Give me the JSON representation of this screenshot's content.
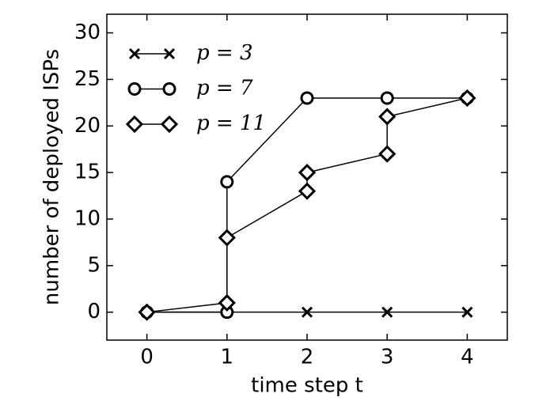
{
  "chart_data": {
    "type": "line",
    "x_label": "time step t",
    "y_label": "number of deployed ISPs",
    "xlim": [
      -0.5,
      4.5
    ],
    "ylim": [
      -3,
      32
    ],
    "xticks": [
      0,
      1,
      2,
      3,
      4
    ],
    "yticks": [
      0,
      5,
      10,
      15,
      20,
      25,
      30
    ],
    "legend": "upper left",
    "series": [
      {
        "name": "p = 3",
        "color": "#000000",
        "marker": "x",
        "x": [
          0,
          1,
          2,
          3,
          4
        ],
        "values": [
          0,
          0,
          0,
          0,
          0
        ]
      },
      {
        "name": "p = 7",
        "color": "#000000",
        "marker": "o",
        "x": [
          0,
          1,
          1,
          2,
          3,
          4
        ],
        "values": [
          0,
          0,
          14,
          23,
          23,
          23
        ]
      },
      {
        "name": "p = 11",
        "color": "#000000",
        "marker": "D",
        "x": [
          0,
          1,
          1,
          2,
          2,
          3,
          3,
          4
        ],
        "values": [
          0,
          1,
          8,
          13,
          15,
          17,
          21,
          23
        ]
      }
    ]
  }
}
